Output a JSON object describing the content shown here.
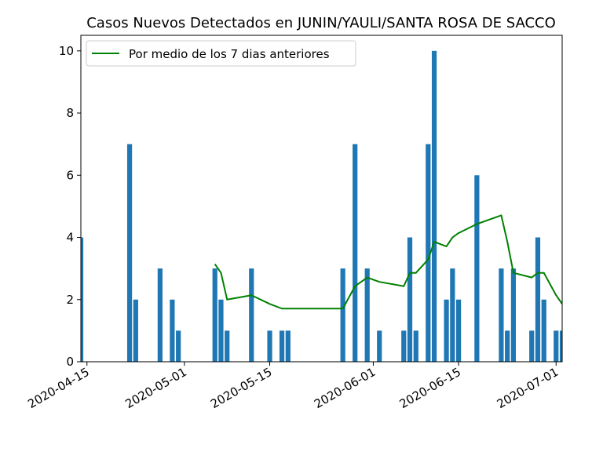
{
  "chart_data": {
    "type": "bar",
    "title": "Casos Nuevos Detectados en JUNIN/YAULI/SANTA ROSA DE SACCO",
    "xlabel": "",
    "ylabel": "",
    "ylim": [
      0,
      10.5
    ],
    "xlim": [
      "2020-04-14",
      "2020-07-02"
    ],
    "grid": false,
    "legend_position": "top-left",
    "bar_color": "#1f77b4",
    "line_color": "#008000",
    "x_ticks": [
      "2020-04-15",
      "2020-05-01",
      "2020-05-15",
      "2020-06-01",
      "2020-06-15",
      "2020-07-01"
    ],
    "y_ticks": [
      0,
      2,
      4,
      6,
      8,
      10
    ],
    "bars": [
      {
        "date": "2020-04-14",
        "value": 4
      },
      {
        "date": "2020-04-22",
        "value": 7
      },
      {
        "date": "2020-04-23",
        "value": 2
      },
      {
        "date": "2020-04-27",
        "value": 3
      },
      {
        "date": "2020-04-29",
        "value": 2
      },
      {
        "date": "2020-04-30",
        "value": 1
      },
      {
        "date": "2020-05-06",
        "value": 3
      },
      {
        "date": "2020-05-07",
        "value": 2
      },
      {
        "date": "2020-05-08",
        "value": 1
      },
      {
        "date": "2020-05-12",
        "value": 3
      },
      {
        "date": "2020-05-15",
        "value": 1
      },
      {
        "date": "2020-05-17",
        "value": 1
      },
      {
        "date": "2020-05-18",
        "value": 1
      },
      {
        "date": "2020-05-27",
        "value": 3
      },
      {
        "date": "2020-05-29",
        "value": 7
      },
      {
        "date": "2020-05-31",
        "value": 3
      },
      {
        "date": "2020-06-02",
        "value": 1
      },
      {
        "date": "2020-06-06",
        "value": 1
      },
      {
        "date": "2020-06-07",
        "value": 4
      },
      {
        "date": "2020-06-08",
        "value": 1
      },
      {
        "date": "2020-06-10",
        "value": 7
      },
      {
        "date": "2020-06-11",
        "value": 10
      },
      {
        "date": "2020-06-13",
        "value": 2
      },
      {
        "date": "2020-06-14",
        "value": 3
      },
      {
        "date": "2020-06-15",
        "value": 2
      },
      {
        "date": "2020-06-18",
        "value": 6
      },
      {
        "date": "2020-06-22",
        "value": 3
      },
      {
        "date": "2020-06-23",
        "value": 1
      },
      {
        "date": "2020-06-24",
        "value": 3
      },
      {
        "date": "2020-06-27",
        "value": 1
      },
      {
        "date": "2020-06-28",
        "value": 4
      },
      {
        "date": "2020-06-29",
        "value": 2
      },
      {
        "date": "2020-07-01",
        "value": 1
      },
      {
        "date": "2020-07-02",
        "value": 1
      }
    ],
    "series": [
      {
        "name": "Por medio de los 7 dias anteriores",
        "points": [
          {
            "date": "2020-05-06",
            "value": 3.14
          },
          {
            "date": "2020-05-07",
            "value": 2.86
          },
          {
            "date": "2020-05-08",
            "value": 2.0
          },
          {
            "date": "2020-05-12",
            "value": 2.14
          },
          {
            "date": "2020-05-15",
            "value": 1.86
          },
          {
            "date": "2020-05-17",
            "value": 1.71
          },
          {
            "date": "2020-05-18",
            "value": 1.71
          },
          {
            "date": "2020-05-27",
            "value": 1.71
          },
          {
            "date": "2020-05-29",
            "value": 2.43
          },
          {
            "date": "2020-05-31",
            "value": 2.71
          },
          {
            "date": "2020-06-02",
            "value": 2.57
          },
          {
            "date": "2020-06-06",
            "value": 2.43
          },
          {
            "date": "2020-06-07",
            "value": 2.86
          },
          {
            "date": "2020-06-08",
            "value": 2.86
          },
          {
            "date": "2020-06-10",
            "value": 3.29
          },
          {
            "date": "2020-06-11",
            "value": 3.86
          },
          {
            "date": "2020-06-13",
            "value": 3.71
          },
          {
            "date": "2020-06-14",
            "value": 4.0
          },
          {
            "date": "2020-06-15",
            "value": 4.14
          },
          {
            "date": "2020-06-18",
            "value": 4.43
          },
          {
            "date": "2020-06-22",
            "value": 4.71
          },
          {
            "date": "2020-06-23",
            "value": 3.86
          },
          {
            "date": "2020-06-24",
            "value": 2.86
          },
          {
            "date": "2020-06-27",
            "value": 2.71
          },
          {
            "date": "2020-06-28",
            "value": 2.86
          },
          {
            "date": "2020-06-29",
            "value": 2.86
          },
          {
            "date": "2020-07-01",
            "value": 2.14
          },
          {
            "date": "2020-07-02",
            "value": 1.86
          }
        ]
      }
    ]
  }
}
